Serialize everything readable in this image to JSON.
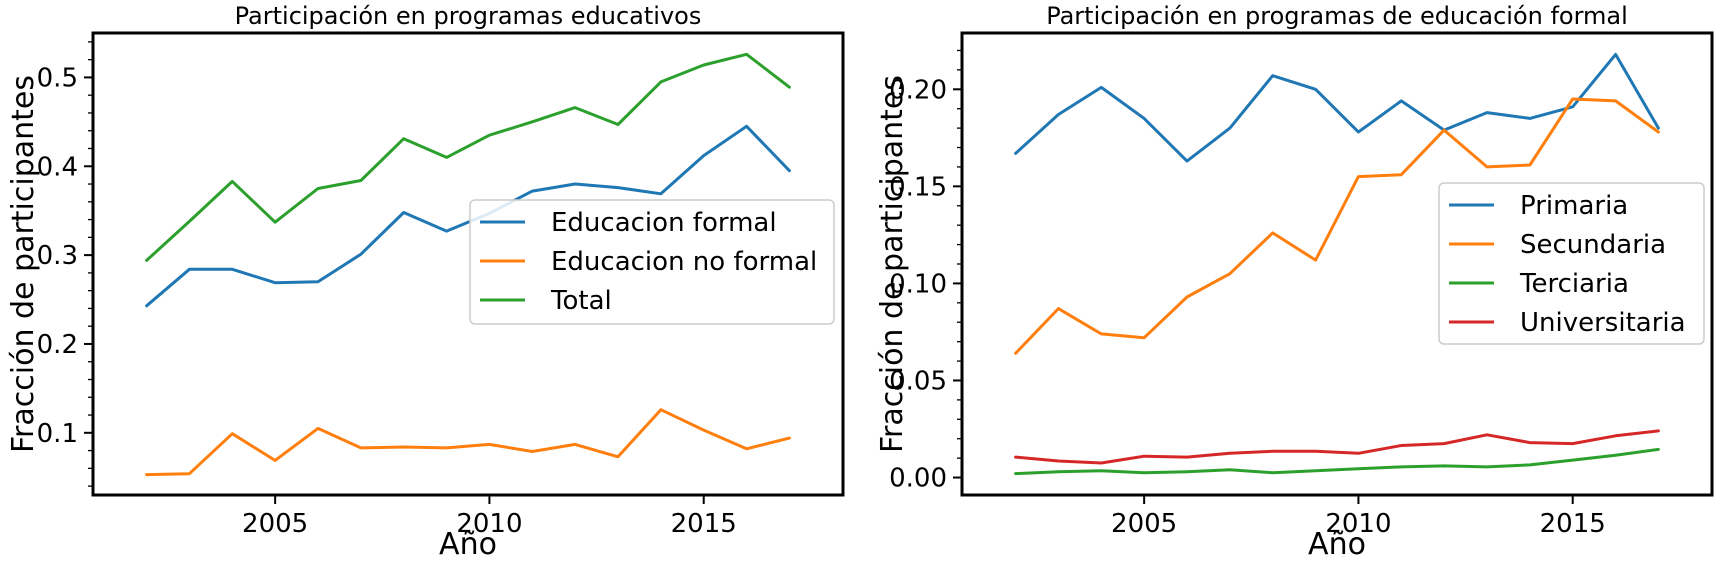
{
  "chart_data": [
    {
      "type": "line",
      "title": "Participación en programas educativos",
      "xlabel": "Año",
      "ylabel": "Fracción de participantes",
      "x": [
        2002,
        2003,
        2004,
        2005,
        2006,
        2007,
        2008,
        2009,
        2010,
        2011,
        2012,
        2013,
        2014,
        2015,
        2016,
        2017
      ],
      "xlim": [
        2000.75,
        2018.25
      ],
      "ylim": [
        0.03,
        0.55
      ],
      "xticks": [
        2005,
        2010,
        2015
      ],
      "xtick_labels": [
        "2005",
        "2010",
        "2015"
      ],
      "yticks": [
        0.1,
        0.2,
        0.3,
        0.4,
        0.5
      ],
      "ytick_labels": [
        "0.1",
        "0.2",
        "0.3",
        "0.4",
        "0.5"
      ],
      "legend_position": "center-right",
      "grid": false,
      "series": [
        {
          "name": "Educacion formal",
          "color": "#1f77b4",
          "values": [
            0.243,
            0.284,
            0.284,
            0.269,
            0.27,
            0.301,
            0.348,
            0.327,
            0.347,
            0.372,
            0.38,
            0.376,
            0.369,
            0.412,
            0.445,
            0.395
          ]
        },
        {
          "name": "Educacion no formal",
          "color": "#ff7f0e",
          "values": [
            0.053,
            0.054,
            0.099,
            0.069,
            0.105,
            0.083,
            0.084,
            0.083,
            0.087,
            0.079,
            0.087,
            0.073,
            0.126,
            0.103,
            0.082,
            0.094
          ]
        },
        {
          "name": "Total",
          "color": "#2ca02c",
          "values": [
            0.294,
            0.338,
            0.383,
            0.337,
            0.375,
            0.384,
            0.431,
            0.41,
            0.435,
            0.45,
            0.466,
            0.447,
            0.495,
            0.514,
            0.526,
            0.489
          ]
        }
      ]
    },
    {
      "type": "line",
      "title": "Participación en programas de educación formal",
      "xlabel": "Año",
      "ylabel": "Fracción de participantes",
      "x": [
        2002,
        2003,
        2004,
        2005,
        2006,
        2007,
        2008,
        2009,
        2010,
        2011,
        2012,
        2013,
        2014,
        2015,
        2016,
        2017
      ],
      "xlim": [
        2000.75,
        2018.25
      ],
      "ylim": [
        -0.009,
        0.229
      ],
      "xticks": [
        2005,
        2010,
        2015
      ],
      "xtick_labels": [
        "2005",
        "2010",
        "2015"
      ],
      "yticks": [
        0.0,
        0.05,
        0.1,
        0.15,
        0.2
      ],
      "ytick_labels": [
        "0.00",
        "0.05",
        "0.10",
        "0.15",
        "0.20"
      ],
      "legend_position": "center-right",
      "grid": false,
      "series": [
        {
          "name": "Primaria",
          "color": "#1f77b4",
          "values": [
            0.167,
            0.187,
            0.201,
            0.185,
            0.163,
            0.18,
            0.207,
            0.2,
            0.178,
            0.194,
            0.179,
            0.188,
            0.185,
            0.191,
            0.218,
            0.18
          ]
        },
        {
          "name": "Secundaria",
          "color": "#ff7f0e",
          "values": [
            0.064,
            0.087,
            0.074,
            0.072,
            0.093,
            0.105,
            0.126,
            0.112,
            0.155,
            0.156,
            0.179,
            0.16,
            0.161,
            0.195,
            0.194,
            0.178
          ]
        },
        {
          "name": "Terciaria",
          "color": "#2ca02c",
          "values": [
            0.002,
            0.003,
            0.0035,
            0.0025,
            0.003,
            0.004,
            0.0025,
            0.0035,
            0.0045,
            0.0055,
            0.006,
            0.0055,
            0.0065,
            0.009,
            0.0115,
            0.0145
          ]
        },
        {
          "name": "Universitaria",
          "color": "#d62728",
          "values": [
            0.0105,
            0.0085,
            0.0075,
            0.011,
            0.0105,
            0.0125,
            0.0135,
            0.0135,
            0.0125,
            0.0165,
            0.0175,
            0.022,
            0.018,
            0.0175,
            0.0215,
            0.024
          ]
        }
      ]
    }
  ]
}
